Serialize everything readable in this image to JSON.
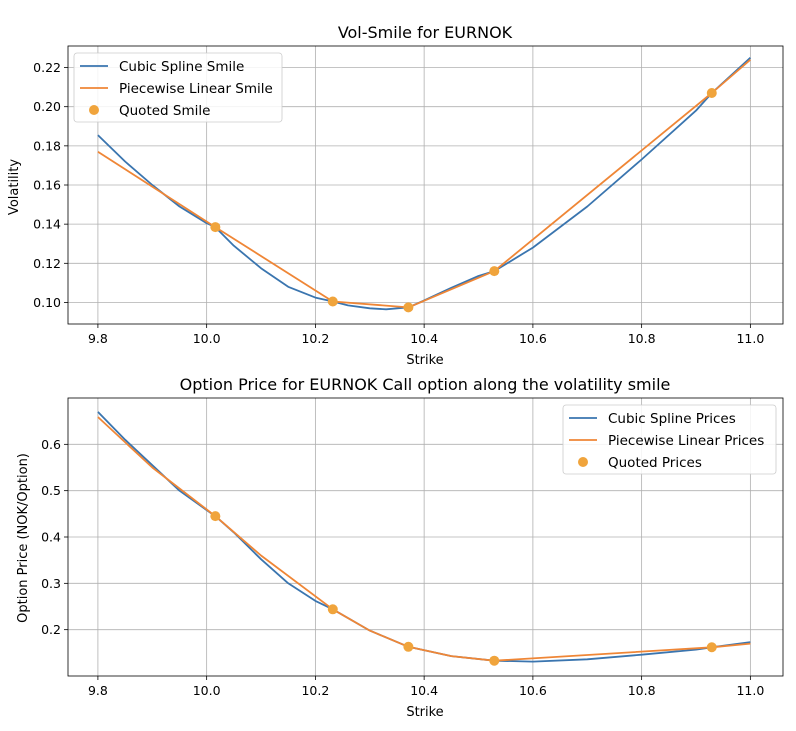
{
  "colors": {
    "cubic": "#3a75af",
    "linear": "#ef8636",
    "quoted": "#f0a43c"
  },
  "chart_data": [
    {
      "type": "line",
      "title": "Vol-Smile for EURNOK",
      "xlabel": "Strike",
      "ylabel": "Volatility",
      "xlim": [
        9.745,
        11.06
      ],
      "ylim": [
        0.089,
        0.231
      ],
      "xticks": [
        9.8,
        10.0,
        10.2,
        10.4,
        10.6,
        10.8,
        11.0
      ],
      "xtick_labels": [
        "9.8",
        "10.0",
        "10.2",
        "10.4",
        "10.6",
        "10.8",
        "11.0"
      ],
      "yticks": [
        0.1,
        0.12,
        0.14,
        0.16,
        0.18,
        0.2,
        0.22
      ],
      "ytick_labels": [
        "0.10",
        "0.12",
        "0.14",
        "0.16",
        "0.18",
        "0.20",
        "0.22"
      ],
      "grid": true,
      "legend": "top-left",
      "series": [
        {
          "name": "Cubic Spline Smile",
          "kind": "line",
          "color_key": "cubic",
          "x": [
            9.8,
            9.85,
            9.9,
            9.95,
            10.0,
            10.016,
            10.05,
            10.1,
            10.15,
            10.2,
            10.232,
            10.26,
            10.3,
            10.33,
            10.371,
            10.4,
            10.45,
            10.5,
            10.529,
            10.6,
            10.7,
            10.8,
            10.9,
            10.929,
            11.0
          ],
          "y": [
            0.1855,
            0.172,
            0.16,
            0.149,
            0.1405,
            0.1385,
            0.129,
            0.1175,
            0.108,
            0.1025,
            0.1005,
            0.0985,
            0.097,
            0.0965,
            0.0975,
            0.101,
            0.1075,
            0.1135,
            0.116,
            0.128,
            0.149,
            0.173,
            0.198,
            0.207,
            0.225
          ]
        },
        {
          "name": "Piecewise Linear Smile",
          "kind": "line",
          "color_key": "linear",
          "x": [
            9.8,
            10.016,
            10.232,
            10.371,
            10.529,
            10.929,
            11.0
          ],
          "y": [
            0.177,
            0.1385,
            0.1005,
            0.0975,
            0.116,
            0.207,
            0.224
          ]
        },
        {
          "name": "Quoted Smile",
          "kind": "scatter",
          "color_key": "quoted",
          "x": [
            10.016,
            10.232,
            10.371,
            10.529,
            10.929
          ],
          "y": [
            0.1385,
            0.1005,
            0.0975,
            0.116,
            0.207
          ]
        }
      ]
    },
    {
      "type": "line",
      "title": "Option Price for EURNOK Call option along the volatility smile",
      "xlabel": "Strike",
      "ylabel": "Option Price (NOK/Option)",
      "xlim": [
        9.745,
        11.06
      ],
      "ylim": [
        0.1,
        0.7
      ],
      "xticks": [
        9.8,
        10.0,
        10.2,
        10.4,
        10.6,
        10.8,
        11.0
      ],
      "xtick_labels": [
        "9.8",
        "10.0",
        "10.2",
        "10.4",
        "10.6",
        "10.8",
        "11.0"
      ],
      "yticks": [
        0.2,
        0.3,
        0.4,
        0.5,
        0.6
      ],
      "ytick_labels": [
        "0.2",
        "0.3",
        "0.4",
        "0.5",
        "0.6"
      ],
      "grid": true,
      "legend": "top-right",
      "series": [
        {
          "name": "Cubic Spline Prices",
          "kind": "line",
          "color_key": "cubic",
          "x": [
            9.8,
            9.85,
            9.9,
            9.95,
            10.0,
            10.016,
            10.05,
            10.1,
            10.15,
            10.2,
            10.232,
            10.3,
            10.371,
            10.45,
            10.529,
            10.6,
            10.7,
            10.8,
            10.9,
            10.929,
            11.0
          ],
          "y": [
            0.67,
            0.61,
            0.555,
            0.5,
            0.458,
            0.445,
            0.41,
            0.352,
            0.3,
            0.262,
            0.244,
            0.198,
            0.163,
            0.143,
            0.133,
            0.131,
            0.136,
            0.146,
            0.157,
            0.162,
            0.173
          ]
        },
        {
          "name": "Piecewise Linear Prices",
          "kind": "line",
          "color_key": "linear",
          "x": [
            9.8,
            9.9,
            10.016,
            10.1,
            10.232,
            10.3,
            10.371,
            10.45,
            10.529,
            10.929,
            11.0
          ],
          "y": [
            0.659,
            0.55,
            0.445,
            0.36,
            0.244,
            0.198,
            0.163,
            0.143,
            0.133,
            0.162,
            0.17
          ]
        },
        {
          "name": "Quoted Prices",
          "kind": "scatter",
          "color_key": "quoted",
          "x": [
            10.016,
            10.232,
            10.371,
            10.529,
            10.929
          ],
          "y": [
            0.445,
            0.244,
            0.163,
            0.133,
            0.162
          ]
        }
      ]
    }
  ]
}
